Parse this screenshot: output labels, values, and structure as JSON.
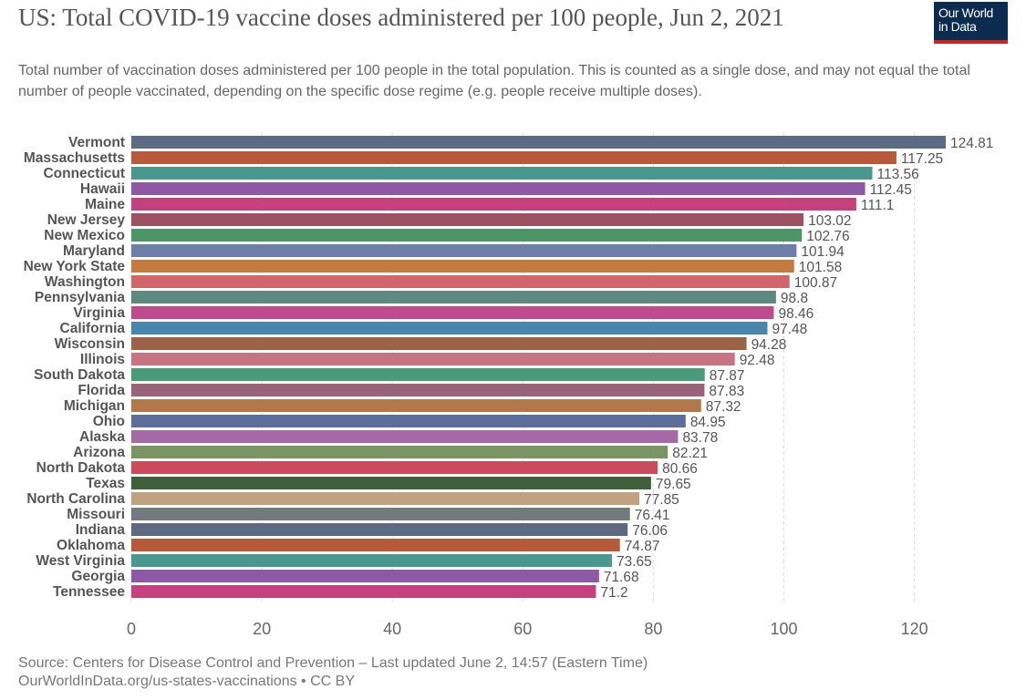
{
  "title": "US: Total COVID-19 vaccine doses administered per 100 people, Jun 2, 2021",
  "subtitle": "Total number of vaccination doses administered per 100 people in the total population. This is counted as a single dose, and may not equal the total number of people vaccinated, depending on the specific dose regime (e.g. people receive multiple doses).",
  "logo": {
    "line1": "Our World",
    "line2": "in Data",
    "bg_color": "#0b2b4f",
    "accent_color": "#ce261e"
  },
  "footer": {
    "source": "Source: Centers for Disease Control and Prevention – Last updated June 2, 14:57 (Eastern Time)",
    "url": "OurWorldInData.org/us-states-vaccinations • CC BY"
  },
  "chart_data": {
    "type": "bar",
    "orientation": "horizontal",
    "categories": [
      "Vermont",
      "Massachusetts",
      "Connecticut",
      "Hawaii",
      "Maine",
      "New Jersey",
      "New Mexico",
      "Maryland",
      "New York State",
      "Washington",
      "Pennsylvania",
      "Virginia",
      "California",
      "Wisconsin",
      "Illinois",
      "South Dakota",
      "Florida",
      "Michigan",
      "Ohio",
      "Alaska",
      "Arizona",
      "North Dakota",
      "Texas",
      "North Carolina",
      "Missouri",
      "Indiana",
      "Oklahoma",
      "West Virginia",
      "Georgia",
      "Tennessee"
    ],
    "values": [
      124.81,
      117.25,
      113.56,
      112.45,
      111.1,
      103.02,
      102.76,
      101.94,
      101.58,
      100.87,
      98.8,
      98.46,
      97.48,
      94.28,
      92.48,
      87.87,
      87.83,
      87.32,
      84.95,
      83.78,
      82.21,
      80.66,
      79.65,
      77.85,
      76.41,
      76.06,
      74.87,
      73.65,
      71.68,
      71.2
    ],
    "value_labels": [
      "124.81",
      "117.25",
      "113.56",
      "112.45",
      "111.1",
      "103.02",
      "102.76",
      "101.94",
      "101.58",
      "100.87",
      "98.8",
      "98.46",
      "97.48",
      "94.28",
      "92.48",
      "87.87",
      "87.83",
      "87.32",
      "84.95",
      "83.78",
      "82.21",
      "80.66",
      "79.65",
      "77.85",
      "76.41",
      "76.06",
      "74.87",
      "73.65",
      "71.68",
      "71.2"
    ],
    "colors": [
      "#5b6b83",
      "#b65a3a",
      "#4a9790",
      "#8d58a6",
      "#c6407d",
      "#9c5062",
      "#4c9569",
      "#6d7fa8",
      "#c57a3e",
      "#d0666b",
      "#5c8a7e",
      "#c04a8e",
      "#4887ac",
      "#9c6245",
      "#c87382",
      "#4a9a7b",
      "#9a6478",
      "#b3784a",
      "#5b6f9a",
      "#a56aa5",
      "#7a9463",
      "#c94b5c",
      "#3f5f3a",
      "#c2a27e",
      "#727a80",
      "#5b6a80",
      "#b65a3a",
      "#4a9790",
      "#8d58a6",
      "#c6407d"
    ],
    "xticks": [
      "0",
      "20",
      "40",
      "60",
      "80",
      "100",
      "120"
    ],
    "xlim": [
      0,
      130
    ],
    "grid": "vertical dashed"
  }
}
